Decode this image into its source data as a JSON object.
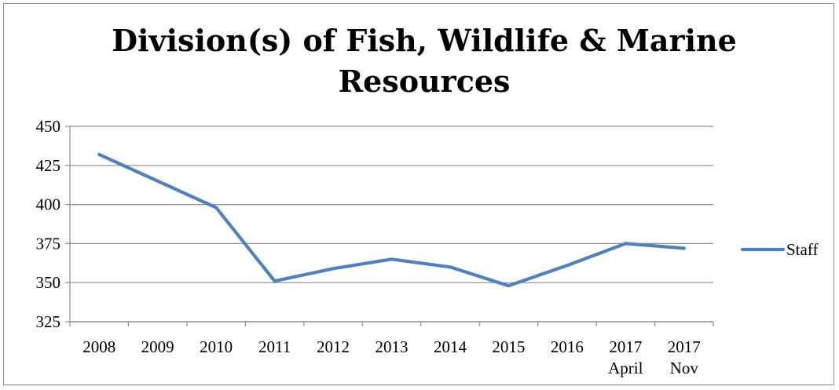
{
  "chart_data": {
    "type": "line",
    "title": "Division(s) of Fish, Wildlife & Marine Resources",
    "categories": [
      "2008",
      "2009",
      "2010",
      "2011",
      "2012",
      "2013",
      "2014",
      "2015",
      "2016",
      "2017 April",
      "2017 Nov"
    ],
    "category_lines": [
      [
        "2008"
      ],
      [
        "2009"
      ],
      [
        "2010"
      ],
      [
        "2011"
      ],
      [
        "2012"
      ],
      [
        "2013"
      ],
      [
        "2014"
      ],
      [
        "2015"
      ],
      [
        "2016"
      ],
      [
        "2017",
        "April"
      ],
      [
        "2017",
        "Nov"
      ]
    ],
    "series": [
      {
        "name": "Staff",
        "values": [
          432,
          415,
          398,
          351,
          359,
          365,
          360,
          348,
          361,
          375,
          372
        ],
        "color": "#4f81bd"
      }
    ],
    "yticks": [
      325,
      350,
      375,
      400,
      425,
      450
    ],
    "ylim": [
      325,
      450
    ],
    "xlabel": "",
    "ylabel": "",
    "grid": true,
    "legend": "right"
  }
}
